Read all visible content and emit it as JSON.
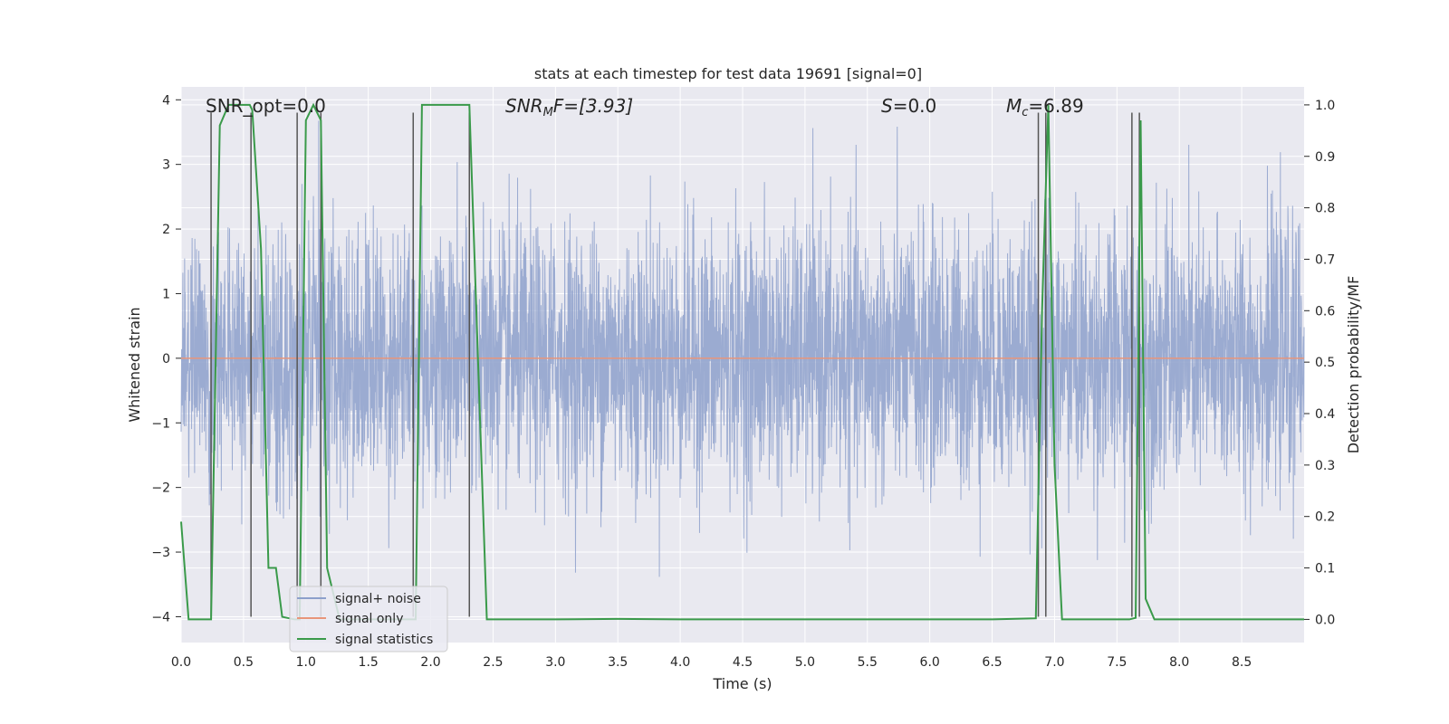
{
  "chart_data": {
    "type": "line",
    "title": "stats at each timestep for test data 19691 [signal=0]",
    "xlabel": "Time (s)",
    "ylabel": "Whitened strain",
    "y2label": "Detection probability/MF",
    "xlim": [
      0,
      9.0
    ],
    "ylim": [
      -4.4,
      4.2
    ],
    "y2lim": [
      -0.045,
      1.035
    ],
    "xticks": [
      "0.0",
      "0.5",
      "1.0",
      "1.5",
      "2.0",
      "2.5",
      "3.0",
      "3.5",
      "4.0",
      "4.5",
      "5.0",
      "5.5",
      "6.0",
      "6.5",
      "7.0",
      "7.5",
      "8.0",
      "8.5"
    ],
    "yticks": [
      "4",
      "3",
      "2",
      "1",
      "0",
      "−1",
      "−2",
      "−3",
      "−4"
    ],
    "y2ticks": [
      "1.0",
      "0.9",
      "0.8",
      "0.7",
      "0.6",
      "0.5",
      "0.4",
      "0.3",
      "0.2",
      "0.1",
      "0.0"
    ],
    "annotations": {
      "snr_opt": "SNR_opt=0.0",
      "snr_mf_prefix": "SNR",
      "snr_mf_sub": "M",
      "snr_mf_rest": "F=[3.93]",
      "s_var": "S",
      "s_rest": "=0.0",
      "mc_var": "M",
      "mc_sub": "c",
      "mc_rest": "=6.89"
    },
    "legend": {
      "position": "lower-left",
      "entries": [
        "signal+ noise",
        "signal only",
        "signal statistics"
      ]
    },
    "colors": {
      "noise": "#8da0cb",
      "signal": "#e8957a",
      "stats": "#3a9a4a",
      "vline": "#555555",
      "plot_bg": "#e9e9f0",
      "grid": "#ffffff"
    },
    "series": [
      {
        "name": "signal+ noise",
        "description": "whitened strain noise, approx. standard normal, sampled densely over 0-9 s",
        "noise_std": 1.0,
        "noise_range": [
          -4.0,
          3.9
        ]
      },
      {
        "name": "signal only",
        "x": [
          0,
          9.0
        ],
        "y": [
          0,
          0
        ]
      },
      {
        "name": "signal statistics",
        "x": [
          0.0,
          0.06,
          0.1,
          0.24,
          0.31,
          0.38,
          0.55,
          0.57,
          0.64,
          0.7,
          0.76,
          0.81,
          0.91,
          0.95,
          1.0,
          1.06,
          1.12,
          1.17,
          1.27,
          1.88,
          1.93,
          2.08,
          2.31,
          2.38,
          2.45,
          3.0,
          3.5,
          4.0,
          5.0,
          6.0,
          6.5,
          6.85,
          6.9,
          6.95,
          7.0,
          7.06,
          7.5,
          7.6,
          7.65,
          7.69,
          7.73,
          7.8,
          8.0,
          9.0
        ],
        "y": [
          0.19,
          0.0,
          0.0,
          0.0,
          0.96,
          1.0,
          1.0,
          0.99,
          0.72,
          0.1,
          0.1,
          0.005,
          0.0,
          0.0,
          0.97,
          1.0,
          0.97,
          0.1,
          0.0,
          0.0,
          1.0,
          1.0,
          1.0,
          0.5,
          0.0,
          0.0,
          0.001,
          0.0,
          0.0,
          0.0,
          0.0,
          0.002,
          0.6,
          1.0,
          0.3,
          0.0,
          0.0,
          0.0,
          0.003,
          0.97,
          0.04,
          0.0,
          0.0,
          0.0
        ]
      }
    ],
    "vlines": [
      0.24,
      0.56,
      0.93,
      1.12,
      1.86,
      2.31,
      6.87,
      6.93,
      7.62,
      7.68
    ]
  }
}
